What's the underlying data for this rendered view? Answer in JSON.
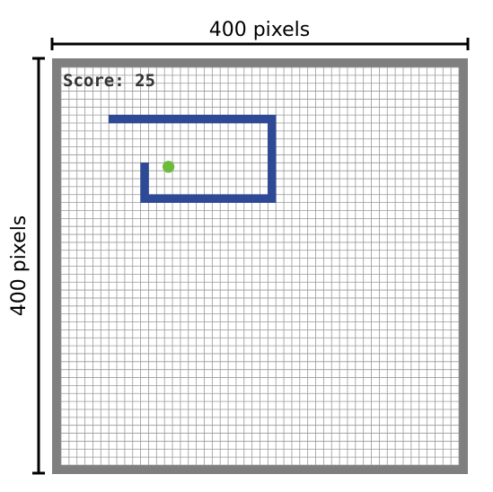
{
  "dimensions": {
    "width_label": "400 pixels",
    "height_label": "400 pixels"
  },
  "game": {
    "score_text": "Score: 25",
    "grid": {
      "cols": 50,
      "rows": 50
    },
    "snake_cells": [
      [
        6,
        6
      ],
      [
        7,
        6
      ],
      [
        8,
        6
      ],
      [
        9,
        6
      ],
      [
        10,
        6
      ],
      [
        11,
        6
      ],
      [
        12,
        6
      ],
      [
        13,
        6
      ],
      [
        14,
        6
      ],
      [
        15,
        6
      ],
      [
        16,
        6
      ],
      [
        17,
        6
      ],
      [
        18,
        6
      ],
      [
        19,
        6
      ],
      [
        20,
        6
      ],
      [
        21,
        6
      ],
      [
        22,
        6
      ],
      [
        23,
        6
      ],
      [
        24,
        6
      ],
      [
        25,
        6
      ],
      [
        26,
        6
      ],
      [
        26,
        7
      ],
      [
        26,
        8
      ],
      [
        26,
        9
      ],
      [
        26,
        10
      ],
      [
        26,
        11
      ],
      [
        26,
        12
      ],
      [
        26,
        13
      ],
      [
        26,
        14
      ],
      [
        26,
        15
      ],
      [
        26,
        16
      ],
      [
        25,
        16
      ],
      [
        24,
        16
      ],
      [
        23,
        16
      ],
      [
        22,
        16
      ],
      [
        21,
        16
      ],
      [
        20,
        16
      ],
      [
        19,
        16
      ],
      [
        18,
        16
      ],
      [
        17,
        16
      ],
      [
        16,
        16
      ],
      [
        15,
        16
      ],
      [
        14,
        16
      ],
      [
        13,
        16
      ],
      [
        12,
        16
      ],
      [
        11,
        16
      ],
      [
        10,
        16
      ],
      [
        10,
        15
      ],
      [
        10,
        14
      ],
      [
        10,
        13
      ],
      [
        10,
        12
      ]
    ],
    "food_cell": [
      13,
      12
    ],
    "colors": {
      "snake": "#2e4996",
      "food": "#6dbb3d",
      "wall": "#7f7f7f",
      "grid_line": "#999999",
      "board": "#ffffff"
    }
  }
}
